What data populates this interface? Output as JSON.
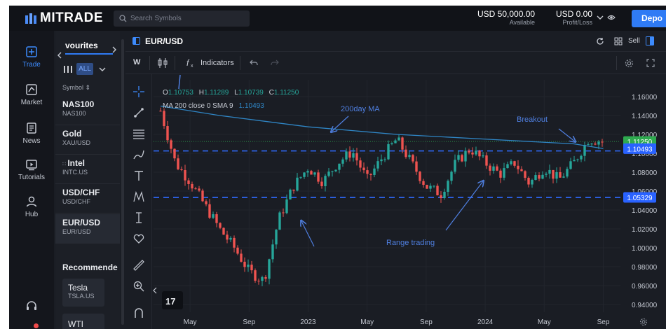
{
  "brand": {
    "name": "MITRADE"
  },
  "search": {
    "placeholder": "Search Symbols"
  },
  "balance": {
    "available_value": "USD 50,000.00",
    "available_label": "Available",
    "pl_value": "USD 0.00",
    "pl_label": "Profit/Loss"
  },
  "deposit_label": "Depo",
  "nav": [
    {
      "label": "Trade",
      "icon": "trade-icon",
      "active": true
    },
    {
      "label": "Market",
      "icon": "market-icon"
    },
    {
      "label": "News",
      "icon": "news-icon"
    },
    {
      "label": "Tutorials",
      "icon": "tutorials-icon"
    },
    {
      "label": "Hub",
      "icon": "hub-icon"
    }
  ],
  "watchlist": {
    "tab": "vourites",
    "filter": "ALL",
    "column": "Symbol ⇕",
    "items": [
      {
        "symbol": "NAS100",
        "name": "NAS100"
      },
      {
        "symbol": "Gold",
        "name": "XAU/USD"
      },
      {
        "symbol": "Intel",
        "name": "INTC.US"
      },
      {
        "symbol": "USD/CHF",
        "name": "USD/CHF"
      },
      {
        "symbol": "EUR/USD",
        "name": "EUR/USD",
        "selected": true
      }
    ],
    "recommended_label": "Recommende",
    "recommended": [
      {
        "symbol": "Tesla",
        "name": "TSLA.US"
      },
      {
        "symbol": "WTI",
        "name": ""
      }
    ]
  },
  "chart_header": {
    "symbol": "EUR/USD",
    "sell_label": "Sell"
  },
  "chart_toolbar": {
    "interval": "W",
    "indicators_label": "Indicators"
  },
  "ohlc": {
    "o_label": "O",
    "o": "1.10753",
    "h_label": "H",
    "h": "1.11289",
    "l_label": "L",
    "l": "1.10739",
    "c_label": "C",
    "c": "1.11250"
  },
  "ma_legend": {
    "label": "MA 200 close 0 SMA 9",
    "value": "1.10493"
  },
  "chart_data": {
    "type": "candlestick",
    "symbol": "EUR/USD",
    "interval": "W",
    "x_tick_labels": [
      "May",
      "Sep",
      "2023",
      "May",
      "Sep",
      "2024",
      "May",
      "Sep"
    ],
    "y_tick_labels": [
      "1.16000",
      "1.14000",
      "1.12000",
      "1.10000",
      "1.08000",
      "1.06000",
      "1.04000",
      "1.02000",
      "1.00000",
      "0.98000",
      "0.96000",
      "0.94000"
    ],
    "ylim": [
      0.935,
      1.167
    ],
    "close_path": [
      [
        "2022-03",
        1.145
      ],
      [
        "2022-04",
        1.09
      ],
      [
        "2022-05",
        1.07
      ],
      [
        "2022-06",
        1.045
      ],
      [
        "2022-07",
        1.02
      ],
      [
        "2022-08",
        1.0
      ],
      [
        "2022-09",
        0.975
      ],
      [
        "2022-10",
        0.965
      ],
      [
        "2022-11",
        1.03
      ],
      [
        "2022-12",
        1.065
      ],
      [
        "2023-01",
        1.085
      ],
      [
        "2023-02",
        1.07
      ],
      [
        "2023-03",
        1.09
      ],
      [
        "2023-04",
        1.102
      ],
      [
        "2023-05",
        1.072
      ],
      [
        "2023-06",
        1.095
      ],
      [
        "2023-07",
        1.115
      ],
      [
        "2023-08",
        1.09
      ],
      [
        "2023-09",
        1.065
      ],
      [
        "2023-10",
        1.057
      ],
      [
        "2023-11",
        1.09
      ],
      [
        "2023-12",
        1.105
      ],
      [
        "2024-01",
        1.09
      ],
      [
        "2024-02",
        1.078
      ],
      [
        "2024-03",
        1.09
      ],
      [
        "2024-04",
        1.068
      ],
      [
        "2024-05",
        1.085
      ],
      [
        "2024-06",
        1.072
      ],
      [
        "2024-07",
        1.09
      ],
      [
        "2024-08",
        1.115
      ],
      [
        "2024-09",
        1.1125
      ]
    ],
    "ma200": [
      [
        "2022-03",
        1.15
      ],
      [
        "2022-07",
        1.14
      ],
      [
        "2023-01",
        1.128
      ],
      [
        "2023-07",
        1.12
      ],
      [
        "2024-01",
        1.115
      ],
      [
        "2024-07",
        1.11
      ],
      [
        "2024-09",
        1.105
      ]
    ],
    "horizontal_levels": [
      1.1025,
      1.0533
    ],
    "price_tags": [
      {
        "label": "1.11250",
        "value": 1.1125,
        "color": "#2eaa4f"
      },
      {
        "label": "1.10493",
        "value": 1.1049,
        "color": "#2962ff"
      },
      {
        "label": "1.05329",
        "value": 1.0533,
        "color": "#2962ff"
      }
    ],
    "annotations": [
      "200day MA",
      "Breakout",
      "Range trading"
    ]
  },
  "colors": {
    "up": "#26a69a",
    "down": "#ef5350",
    "ma": "#2f86c6",
    "accent": "#2f7bf5",
    "annot": "#4f7fe0"
  }
}
